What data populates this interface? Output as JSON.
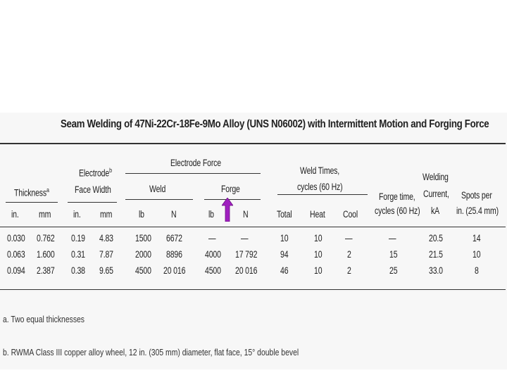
{
  "title": "Seam Welding of 47Ni-22Cr-18Fe-9Mo Alloy (UNS N06002) with Intermittent Motion and Forging Force",
  "headers": {
    "thickness": "Thickness",
    "thickness_sup": "a",
    "electrode_face_width_1": "Electrode",
    "electrode_face_width_sup": "b",
    "electrode_face_width_2": "Face Width",
    "electrode_force": "Electrode Force",
    "weld": "Weld",
    "forge": "Forge",
    "weld_times_1": "Weld Times,",
    "weld_times_2": "cycles (60 Hz)",
    "forge_time_1": "Forge time,",
    "forge_time_2": "cycles (60 Hz)",
    "welding_current_1": "Welding",
    "welding_current_2": "Current,",
    "welding_current_3": "kA",
    "spots_1": "Spots per",
    "spots_2": "in. (25.4 mm)"
  },
  "units": {
    "in1": "in.",
    "mm1": "mm",
    "in2": "in.",
    "mm2": "mm",
    "lb1": "lb",
    "n1": "N",
    "lb2": "lb",
    "n2": "N",
    "total": "Total",
    "heat": "Heat",
    "cool": "Cool"
  },
  "rows": [
    {
      "t_in": "0.030",
      "t_mm": "0.762",
      "w_in": "0.19",
      "w_mm": "4.83",
      "weld_lb": "1500",
      "weld_n": "6672",
      "forge_lb": "—",
      "forge_n": "—",
      "total": "10",
      "heat": "10",
      "cool": "—",
      "forge_time": "—",
      "current": "20.5",
      "spots": "14"
    },
    {
      "t_in": "0.063",
      "t_mm": "1.600",
      "w_in": "0.31",
      "w_mm": "7.87",
      "weld_lb": "2000",
      "weld_n": "8896",
      "forge_lb": "4000",
      "forge_n": "17 792",
      "total": "94",
      "heat": "10",
      "cool": "2",
      "forge_time": "15",
      "current": "21.5",
      "spots": "10"
    },
    {
      "t_in": "0.094",
      "t_mm": "2.387",
      "w_in": "0.38",
      "w_mm": "9.65",
      "weld_lb": "4500",
      "weld_n": "20 016",
      "forge_lb": "4500",
      "forge_n": "20 016",
      "total": "46",
      "heat": "10",
      "cool": "2",
      "forge_time": "25",
      "current": "33.0",
      "spots": "8"
    }
  ],
  "footnotes": {
    "a": "a.  Two equal thicknesses",
    "b": "b.  RWMA Class III copper alloy wheel, 12 in. (305 mm) diameter, flat face, 15° double bevel"
  },
  "colors": {
    "arrow": "#a020c0"
  }
}
